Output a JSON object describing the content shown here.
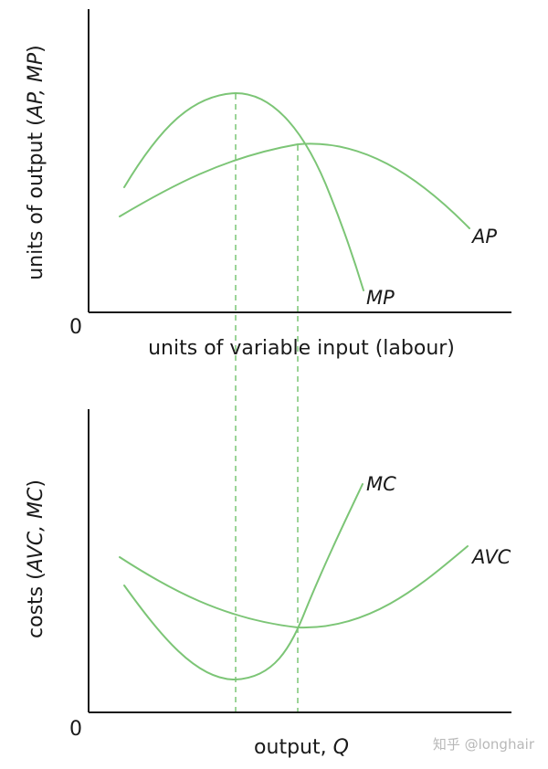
{
  "colors": {
    "curve": "#7cc576",
    "axis": "#1a1a1a",
    "watermark": "#b8b8b8"
  },
  "top_panel": {
    "y_axis_label_plain": "units of output (",
    "y_axis_label_ital": "AP, MP",
    "y_axis_label_close": ")",
    "x_axis_label": "units of variable input (labour)",
    "origin": "0",
    "curves": {
      "mp": "MP",
      "ap": "AP"
    }
  },
  "bottom_panel": {
    "y_axis_label_plain": "costs (",
    "y_axis_label_ital": "AVC, MC",
    "y_axis_label_close": ")",
    "x_axis_label_plain": "output, ",
    "x_axis_label_ital": "Q",
    "origin": "0",
    "curves": {
      "mc": "MC",
      "avc": "AVC"
    }
  },
  "watermark": "知乎 @longhair"
}
